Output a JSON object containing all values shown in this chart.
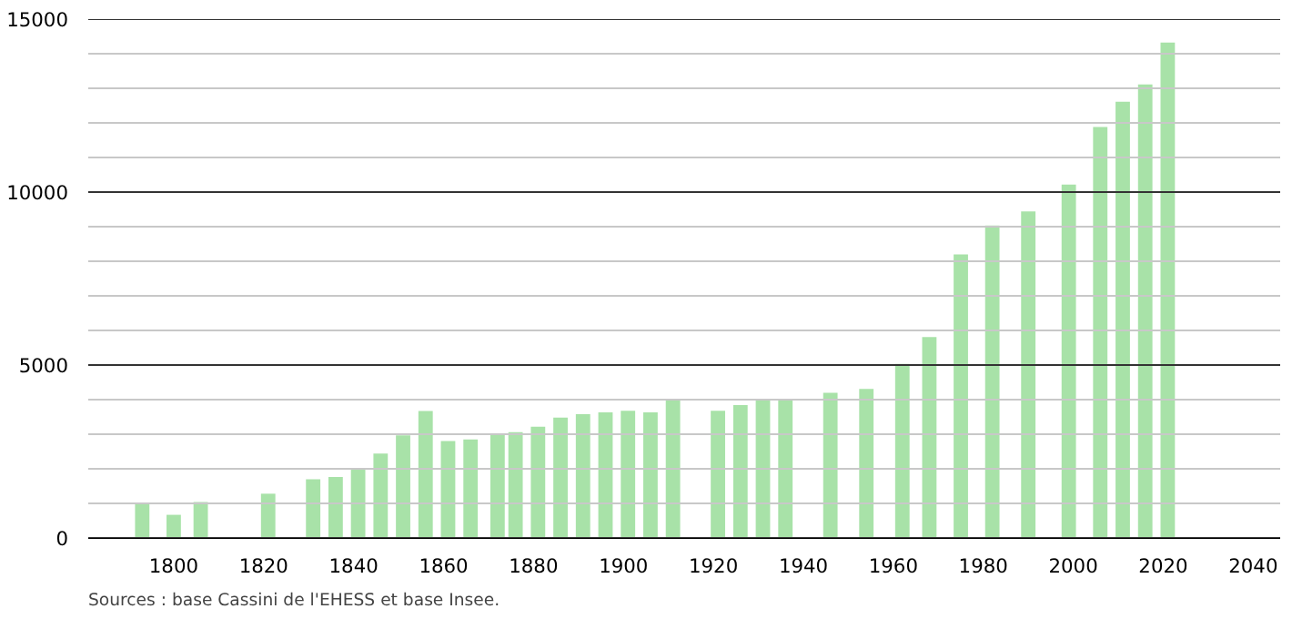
{
  "chart_data": {
    "type": "bar",
    "x": [
      1793,
      1800,
      1806,
      1821,
      1831,
      1836,
      1841,
      1846,
      1851,
      1856,
      1861,
      1866,
      1872,
      1876,
      1881,
      1886,
      1891,
      1896,
      1901,
      1906,
      1911,
      1921,
      1926,
      1931,
      1936,
      1946,
      1954,
      1962,
      1968,
      1975,
      1982,
      1990,
      1999,
      2006,
      2011,
      2016,
      2021
    ],
    "values": [
      1000,
      670,
      1040,
      1280,
      1700,
      1760,
      2020,
      2440,
      2970,
      3670,
      2800,
      2850,
      3010,
      3060,
      3220,
      3480,
      3580,
      3630,
      3680,
      3630,
      3980,
      3680,
      3840,
      3980,
      3980,
      4200,
      4310,
      5030,
      5810,
      8200,
      9030,
      9440,
      10220,
      11880,
      12610,
      13110,
      14320
    ],
    "color": "#a8e2a8",
    "xlim": [
      1781,
      2046
    ],
    "xticks": [
      1800,
      1820,
      1840,
      1860,
      1880,
      1900,
      1920,
      1940,
      1960,
      1980,
      2000,
      2020,
      2040
    ],
    "ylim": [
      0,
      15000
    ],
    "yticks": [
      0,
      {
        "value": 1000,
        "label": null
      },
      {
        "value": 2000,
        "label": null
      },
      {
        "value": 3000,
        "label": null
      },
      {
        "value": 4000,
        "label": null
      },
      5000,
      {
        "value": 6000,
        "label": null
      },
      {
        "value": 7000,
        "label": null
      },
      {
        "value": 8000,
        "label": null
      },
      {
        "value": 9000,
        "label": null
      },
      10000,
      {
        "value": 11000,
        "label": null
      },
      {
        "value": 12000,
        "label": null
      },
      {
        "value": 13000,
        "label": null
      },
      {
        "value": 14000,
        "label": null
      },
      15000
    ],
    "grid": "y",
    "annotations": [
      "Sources : base Cassini de l'EHESS et base Insee."
    ]
  }
}
